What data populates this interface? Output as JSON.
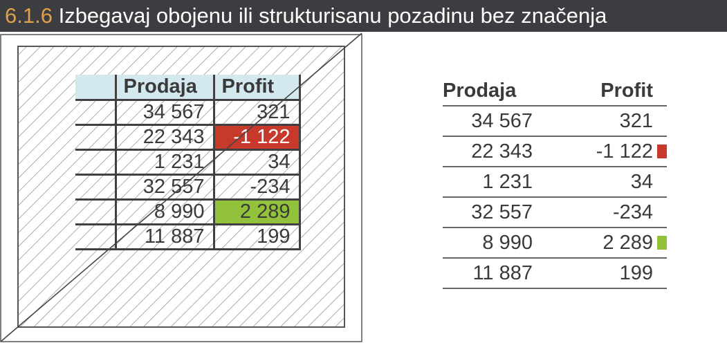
{
  "header": {
    "number": "6.1.6",
    "title": "Izbegavaj obojenu ili strukturisanu pozadinu bez značenja"
  },
  "table": {
    "headers": [
      "Prodaja",
      "Profit"
    ],
    "rows": [
      {
        "sales": "34 567",
        "profit": "321",
        "highlight": ""
      },
      {
        "sales": "22 343",
        "profit": "-1 122",
        "highlight": "red"
      },
      {
        "sales": "1 231",
        "profit": "34",
        "highlight": ""
      },
      {
        "sales": "32 557",
        "profit": "-234",
        "highlight": ""
      },
      {
        "sales": "8 990",
        "profit": "2 289",
        "highlight": "green"
      },
      {
        "sales": "11 887",
        "profit": "199",
        "highlight": ""
      }
    ]
  },
  "colors": {
    "header_bg": "#3b3d40",
    "number": "#e0a049",
    "header_cell": "#d4e8ef",
    "negative": "#c73a2b",
    "positive": "#92c13b"
  }
}
